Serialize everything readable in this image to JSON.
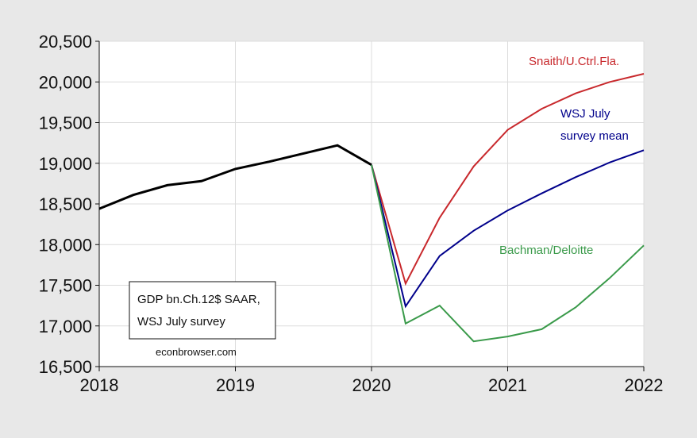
{
  "chart_data": {
    "type": "line",
    "title": "",
    "xlabel": "",
    "ylabel": "",
    "xlim": [
      2018,
      2022
    ],
    "ylim": [
      16500,
      20500
    ],
    "y_ticks": [
      16500,
      17000,
      17500,
      18000,
      18500,
      19000,
      19500,
      20000,
      20500
    ],
    "y_tick_labels": [
      "16,500",
      "17,000",
      "17,500",
      "18,000",
      "18,500",
      "19,000",
      "19,500",
      "20,000",
      "20,500"
    ],
    "x_ticks": [
      2018,
      2019,
      2020,
      2021,
      2022
    ],
    "x_tick_labels": [
      "2018",
      "2019",
      "2020",
      "2021",
      "2022"
    ],
    "grid": true,
    "series": [
      {
        "name": "",
        "color": "#000000",
        "x": [
          2018.0,
          2018.25,
          2018.5,
          2018.75,
          2019.0,
          2019.25,
          2019.5,
          2019.75,
          2020.0
        ],
        "values": [
          18440,
          18610,
          18730,
          18780,
          18930,
          19020,
          19120,
          19220,
          18980
        ]
      },
      {
        "name": "Snaith/U.Ctrl.Fla.",
        "color": "#c8282c",
        "x": [
          2020.0,
          2020.25,
          2020.5,
          2020.75,
          2021.0,
          2021.25,
          2021.5,
          2021.75,
          2022.0
        ],
        "values": [
          18980,
          17520,
          18330,
          18960,
          19410,
          19670,
          19860,
          20000,
          20100
        ]
      },
      {
        "name": "WSJ July survey mean",
        "color": "#00008b",
        "x": [
          2020.0,
          2020.25,
          2020.5,
          2020.75,
          2021.0,
          2021.25,
          2021.5,
          2021.75,
          2022.0
        ],
        "values": [
          18980,
          17240,
          17860,
          18170,
          18420,
          18630,
          18830,
          19010,
          19160
        ]
      },
      {
        "name": "Bachman/Deloitte",
        "color": "#3a9a4a",
        "x": [
          2020.0,
          2020.25,
          2020.5,
          2020.75,
          2021.0,
          2021.25,
          2021.5,
          2021.75,
          2022.0
        ],
        "values": [
          18980,
          17030,
          17250,
          16810,
          16870,
          16960,
          17230,
          17590,
          17990
        ]
      }
    ],
    "labels": {
      "snaith": "Snaith/U.Ctrl.Fla.",
      "wsj_line1": "WSJ July",
      "wsj_line2": "survey mean",
      "bachman": "Bachman/Deloitte"
    },
    "note_box": {
      "line1": "GDP bn.Ch.12$ SAAR,",
      "line2": "WSJ July survey"
    },
    "credit": "econbrowser.com"
  }
}
